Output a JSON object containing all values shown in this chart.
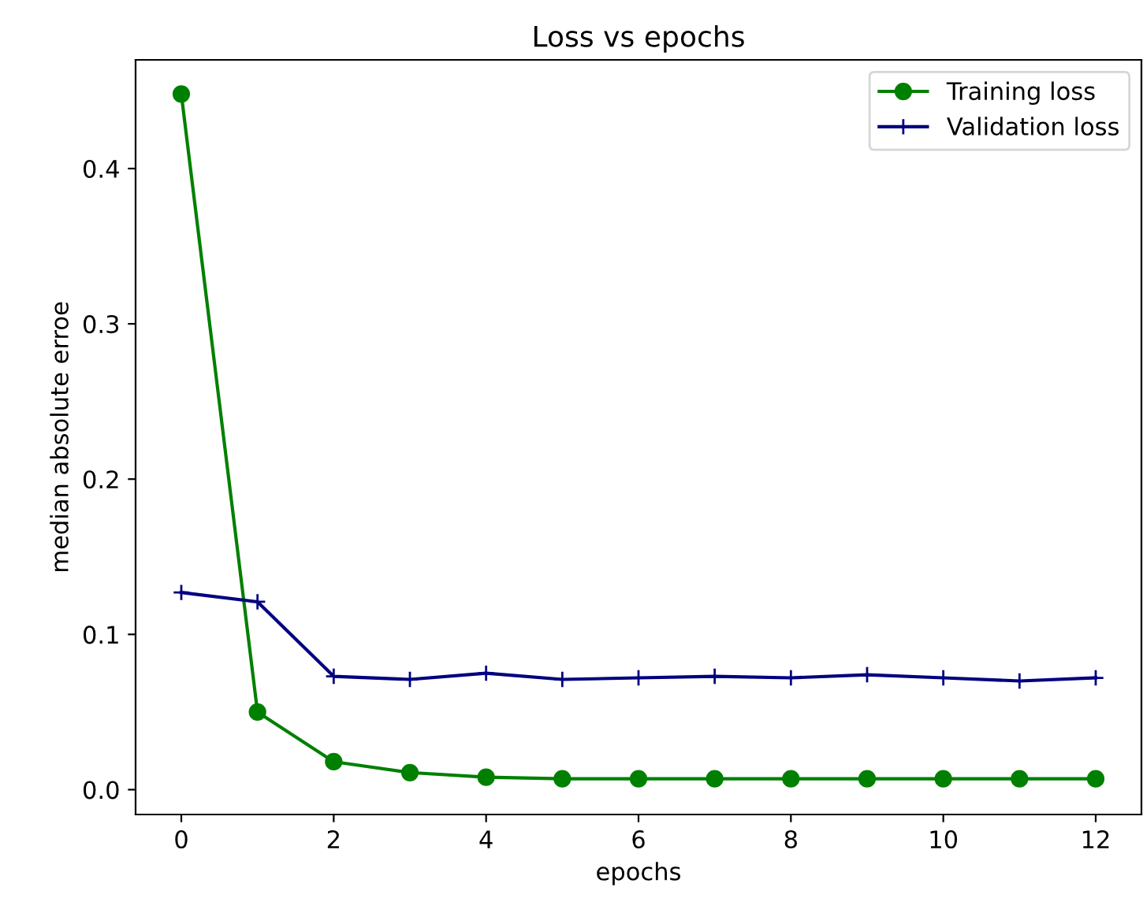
{
  "chart_data": {
    "type": "line",
    "title": "Loss vs epochs",
    "xlabel": "epochs",
    "ylabel": "median absolute erroe",
    "x": [
      0,
      1,
      2,
      3,
      4,
      5,
      6,
      7,
      8,
      9,
      10,
      11,
      12
    ],
    "series": [
      {
        "name": "Training loss",
        "color": "#008000",
        "marker": "circle",
        "values": [
          0.448,
          0.05,
          0.018,
          0.011,
          0.008,
          0.007,
          0.007,
          0.007,
          0.007,
          0.007,
          0.007,
          0.007,
          0.007
        ]
      },
      {
        "name": "Validation loss",
        "color": "#000080",
        "marker": "plus",
        "values": [
          0.127,
          0.121,
          0.073,
          0.071,
          0.075,
          0.071,
          0.072,
          0.073,
          0.072,
          0.074,
          0.072,
          0.07,
          0.072
        ]
      }
    ],
    "xlim": [
      -0.6,
      12.6
    ],
    "xticks": [
      0,
      2,
      4,
      6,
      8,
      10,
      12
    ],
    "ylim": [
      -0.016,
      0.47
    ],
    "yticks": [
      {
        "value": 0,
        "label": "0.0"
      },
      0.1,
      0.2,
      0.3,
      0.4
    ],
    "grid": false,
    "legend": "top right",
    "line_style": "solid"
  }
}
